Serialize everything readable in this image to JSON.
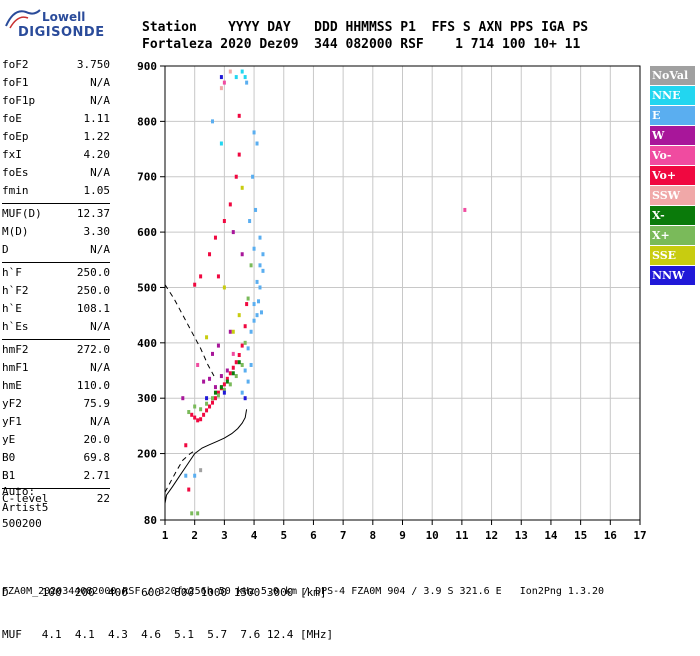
{
  "logo": {
    "line1": "Lowell",
    "line2": "DIGISONDE"
  },
  "header": {
    "line1": "Station    YYYY DAY   DDD HHMMSS P1  FFS S AXN PPS IGA PS",
    "line2": "Fortaleza 2020 Dez09  344 082000 RSF    1 714 100 10+ 11"
  },
  "params": {
    "groups": [
      [
        [
          "foF2",
          "3.750"
        ],
        [
          "foF1",
          "N/A"
        ],
        [
          "foF1p",
          "N/A"
        ],
        [
          "foE",
          "1.11"
        ],
        [
          "foEp",
          "1.22"
        ],
        [
          "fxI",
          "4.20"
        ],
        [
          "foEs",
          "N/A"
        ],
        [
          "fmin",
          "1.05"
        ]
      ],
      [
        [
          "MUF(D)",
          "12.37"
        ],
        [
          "M(D)",
          "3.30"
        ],
        [
          "D",
          "N/A"
        ]
      ],
      [
        [
          "h`F",
          "250.0"
        ],
        [
          "h`F2",
          "250.0"
        ],
        [
          "h`E",
          "108.1"
        ],
        [
          "h`Es",
          "N/A"
        ]
      ],
      [
        [
          "hmF2",
          "272.0"
        ],
        [
          "hmF1",
          "N/A"
        ],
        [
          "hmE",
          "110.0"
        ],
        [
          "yF2",
          "75.9"
        ],
        [
          "yF1",
          "N/A"
        ],
        [
          "yE",
          "20.0"
        ],
        [
          "B0",
          "69.8"
        ],
        [
          "B1",
          "2.71"
        ]
      ],
      [
        [
          "C-level",
          "22"
        ]
      ]
    ]
  },
  "auto": {
    "line1": "Auto:",
    "line2": "Artist5",
    "line3": "500200"
  },
  "legend": [
    {
      "label": "NoVal",
      "color": "#a0a0a0"
    },
    {
      "label": "NNE",
      "color": "#22d6f0"
    },
    {
      "label": "E",
      "color": "#5aaef0"
    },
    {
      "label": "W",
      "color": "#a8169a"
    },
    {
      "label": "Vo-",
      "color": "#f04ba0"
    },
    {
      "label": "Vo+",
      "color": "#f00840"
    },
    {
      "label": "SSW",
      "color": "#f0a8a8"
    },
    {
      "label": "X-",
      "color": "#0a7a0a"
    },
    {
      "label": "X+",
      "color": "#7aba5a"
    },
    {
      "label": "SSE",
      "color": "#c8cc10"
    },
    {
      "label": "NNW",
      "color": "#2018d8"
    }
  ],
  "bottom": {
    "d_row": "D     100  200  400  600  800 1000 1500 3000 [km]",
    "muf_row": "MUF   4.1  4.1  4.3  4.6  5.1  5.7  7.6 12.4 [MHz]"
  },
  "footer": "FZA0M_2020344082000.RSF / 320fx256h 50 kHz 5.0 km / DPS-4 FZA0M 904 / 3.9 S 321.6 E   Ion2Png 1.3.20",
  "chart_data": {
    "type": "scatter",
    "xlim": [
      1,
      17
    ],
    "ylim": [
      80,
      900
    ],
    "x_ticks": [
      1,
      2,
      3,
      4,
      5,
      6,
      7,
      8,
      9,
      10,
      11,
      12,
      13,
      14,
      15,
      16,
      17
    ],
    "y_ticks": [
      80,
      200,
      300,
      400,
      500,
      600,
      700,
      800,
      900
    ],
    "grid": true,
    "legend_position": "right",
    "series": [
      {
        "name": "E",
        "color": "#5aaef0",
        "points": [
          [
            3.9,
            420
          ],
          [
            4.0,
            470
          ],
          [
            4.1,
            510
          ],
          [
            4.2,
            540
          ],
          [
            4.3,
            560
          ],
          [
            3.8,
            390
          ],
          [
            4.0,
            440
          ],
          [
            3.7,
            350
          ],
          [
            3.9,
            360
          ],
          [
            4.1,
            450
          ],
          [
            4.2,
            500
          ],
          [
            4.3,
            530
          ],
          [
            3.95,
            700
          ],
          [
            4.0,
            780
          ],
          [
            3.6,
            310
          ],
          [
            3.8,
            330
          ],
          [
            4.15,
            475
          ],
          [
            4.25,
            455
          ],
          [
            3.85,
            620
          ],
          [
            4.05,
            640
          ],
          [
            4.1,
            760
          ],
          [
            3.75,
            870
          ],
          [
            2.6,
            800
          ],
          [
            1.7,
            160
          ],
          [
            2.0,
            160
          ],
          [
            4.0,
            570
          ],
          [
            4.2,
            590
          ]
        ]
      },
      {
        "name": "Vo+",
        "color": "#f00840",
        "points": [
          [
            1.9,
            270
          ],
          [
            2.0,
            265
          ],
          [
            2.1,
            260
          ],
          [
            2.2,
            262
          ],
          [
            2.3,
            270
          ],
          [
            2.4,
            278
          ],
          [
            2.5,
            285
          ],
          [
            2.6,
            292
          ],
          [
            2.7,
            300
          ],
          [
            2.8,
            310
          ],
          [
            2.9,
            318
          ],
          [
            3.0,
            325
          ],
          [
            3.1,
            335
          ],
          [
            3.2,
            345
          ],
          [
            3.3,
            355
          ],
          [
            3.4,
            365
          ],
          [
            3.5,
            378
          ],
          [
            3.6,
            395
          ],
          [
            3.7,
            430
          ],
          [
            3.75,
            470
          ],
          [
            2.0,
            505
          ],
          [
            2.2,
            520
          ],
          [
            2.5,
            560
          ],
          [
            2.7,
            590
          ],
          [
            3.0,
            620
          ],
          [
            3.2,
            650
          ],
          [
            3.4,
            700
          ],
          [
            3.5,
            740
          ],
          [
            1.8,
            135
          ],
          [
            1.7,
            215
          ],
          [
            2.8,
            520
          ],
          [
            3.5,
            810
          ]
        ]
      },
      {
        "name": "W",
        "color": "#a8169a",
        "points": [
          [
            2.3,
            330
          ],
          [
            2.5,
            335
          ],
          [
            2.7,
            320
          ],
          [
            2.9,
            340
          ],
          [
            3.1,
            350
          ],
          [
            2.6,
            380
          ],
          [
            2.8,
            395
          ],
          [
            3.2,
            420
          ],
          [
            3.6,
            560
          ],
          [
            3.3,
            600
          ],
          [
            1.6,
            300
          ]
        ]
      },
      {
        "name": "X+",
        "color": "#7aba5a",
        "points": [
          [
            2.4,
            290
          ],
          [
            2.6,
            300
          ],
          [
            2.8,
            305
          ],
          [
            3.0,
            315
          ],
          [
            3.2,
            325
          ],
          [
            3.4,
            340
          ],
          [
            3.6,
            360
          ],
          [
            3.7,
            400
          ],
          [
            3.8,
            480
          ],
          [
            2.2,
            280
          ],
          [
            2.0,
            285
          ],
          [
            1.8,
            275
          ],
          [
            3.9,
            540
          ],
          [
            1.9,
            92
          ],
          [
            2.1,
            92
          ]
        ]
      },
      {
        "name": "X-",
        "color": "#0a7a0a",
        "points": [
          [
            3.1,
            330
          ],
          [
            3.3,
            345
          ],
          [
            3.5,
            365
          ],
          [
            2.7,
            310
          ],
          [
            2.9,
            320
          ]
        ]
      },
      {
        "name": "NNE",
        "color": "#22d6f0",
        "points": [
          [
            3.4,
            880
          ],
          [
            3.6,
            890
          ],
          [
            2.9,
            760
          ],
          [
            3.7,
            880
          ]
        ]
      },
      {
        "name": "SSE",
        "color": "#c8cc10",
        "points": [
          [
            3.3,
            420
          ],
          [
            3.5,
            450
          ],
          [
            2.4,
            410
          ],
          [
            3.0,
            500
          ],
          [
            3.6,
            680
          ]
        ]
      },
      {
        "name": "NNW",
        "color": "#2018d8",
        "points": [
          [
            3.0,
            310
          ],
          [
            2.4,
            300
          ],
          [
            3.7,
            300
          ],
          [
            2.9,
            880
          ]
        ]
      },
      {
        "name": "Vo-",
        "color": "#f04ba0",
        "points": [
          [
            2.1,
            360
          ],
          [
            3.3,
            380
          ],
          [
            3.0,
            870
          ],
          [
            11.1,
            640
          ]
        ]
      },
      {
        "name": "SSW",
        "color": "#f0a8a8",
        "points": [
          [
            2.9,
            860
          ],
          [
            3.2,
            890
          ]
        ]
      },
      {
        "name": "NoVal",
        "color": "#a0a0a0",
        "points": [
          [
            2.2,
            170
          ]
        ]
      }
    ],
    "profile": [
      [
        3.75,
        280
      ],
      [
        3.7,
        265
      ],
      [
        3.6,
        255
      ],
      [
        3.45,
        245
      ],
      [
        3.25,
        236
      ],
      [
        3.0,
        228
      ],
      [
        2.75,
        222
      ],
      [
        2.5,
        216
      ],
      [
        2.25,
        210
      ],
      [
        2.0,
        200
      ],
      [
        1.75,
        180
      ],
      [
        1.5,
        160
      ],
      [
        1.25,
        140
      ],
      [
        1.05,
        125
      ],
      [
        1.0,
        110
      ]
    ],
    "profile_dashed": [
      [
        1.0,
        130
      ],
      [
        1.2,
        150
      ],
      [
        1.4,
        170
      ],
      [
        1.6,
        188
      ],
      [
        1.85,
        200
      ],
      [
        2.0,
        205
      ]
    ],
    "upper_dashed": [
      [
        1.0,
        505
      ],
      [
        1.3,
        480
      ],
      [
        1.6,
        450
      ],
      [
        1.9,
        420
      ],
      [
        2.2,
        390
      ],
      [
        2.45,
        360
      ],
      [
        2.65,
        340
      ]
    ]
  }
}
